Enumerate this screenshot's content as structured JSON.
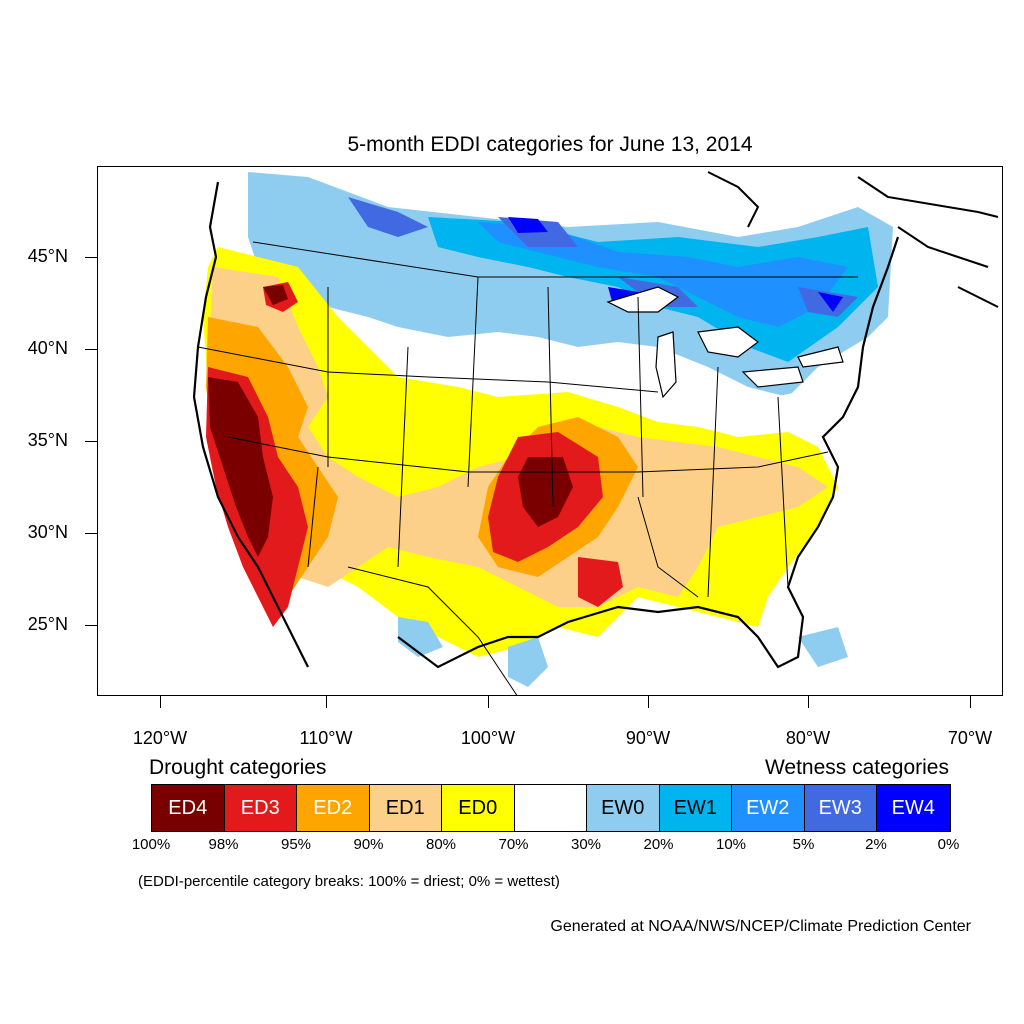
{
  "title": "5-month EDDI categories for June 13, 2014",
  "lat_labels": [
    "45°N",
    "40°N",
    "35°N",
    "30°N",
    "25°N"
  ],
  "lon_labels": [
    "120°W",
    "110°W",
    "100°W",
    "90°W",
    "80°W",
    "70°W"
  ],
  "legend": {
    "drought_heading": "Drought categories",
    "wetness_heading": "Wetness categories",
    "categories": [
      {
        "label": "ED4",
        "color": "#7a0000",
        "text_color": "#ffffff"
      },
      {
        "label": "ED3",
        "color": "#e31a1c",
        "text_color": "#ffffff"
      },
      {
        "label": "ED2",
        "color": "#ffa500",
        "text_color": "#ffffff"
      },
      {
        "label": "ED1",
        "color": "#fdd08a",
        "text_color": "#000000"
      },
      {
        "label": "ED0",
        "color": "#ffff00",
        "text_color": "#000000"
      },
      {
        "label": "",
        "color": "#ffffff",
        "text_color": "#000000"
      },
      {
        "label": "EW0",
        "color": "#8ecdf0",
        "text_color": "#000000"
      },
      {
        "label": "EW1",
        "color": "#00b4ef",
        "text_color": "#000000"
      },
      {
        "label": "EW2",
        "color": "#1e90ff",
        "text_color": "#ffffff"
      },
      {
        "label": "EW3",
        "color": "#4169e1",
        "text_color": "#ffffff"
      },
      {
        "label": "EW4",
        "color": "#0000ff",
        "text_color": "#ffffff"
      }
    ],
    "breaks": [
      "100%",
      "98%",
      "95%",
      "90%",
      "80%",
      "70%",
      "30%",
      "20%",
      "10%",
      "5%",
      "2%",
      "0%"
    ]
  },
  "note": "(EDDI-percentile category breaks: 100% = driest; 0% = wettest)",
  "credit": "Generated at NOAA/NWS/NCEP/Climate Prediction Center"
}
